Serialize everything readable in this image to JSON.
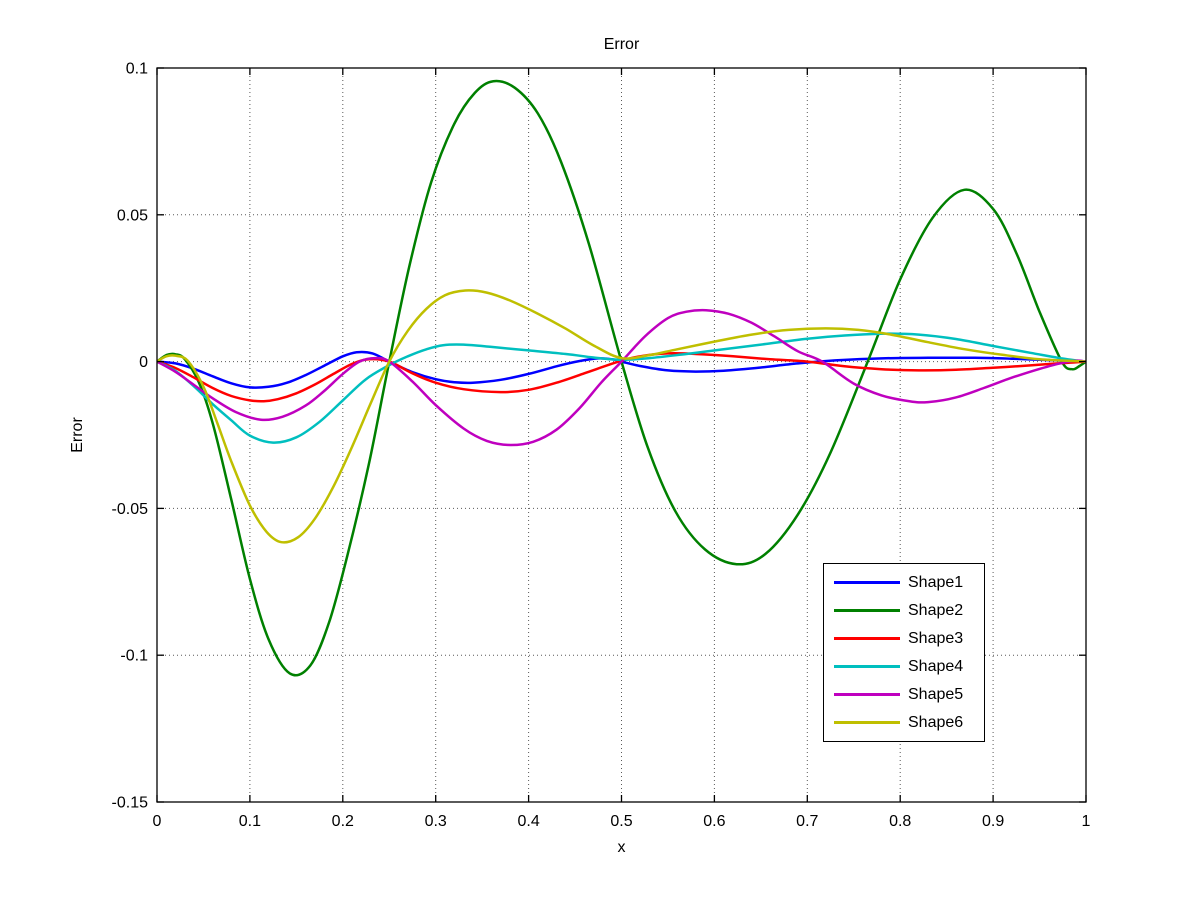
{
  "figure": {
    "title": "Error",
    "xlabel": "x",
    "ylabel": "Error",
    "background": "#ffffff"
  },
  "chart_data": {
    "type": "line",
    "title": "Error",
    "xlabel": "x",
    "ylabel": "Error",
    "xlim": [
      0,
      1
    ],
    "ylim": [
      -0.15,
      0.1
    ],
    "xtick_values": [
      0,
      0.1,
      0.2,
      0.3,
      0.4,
      0.5,
      0.6,
      0.7,
      0.8,
      0.9,
      1
    ],
    "xtick_labels": [
      "0",
      "0.1",
      "0.2",
      "0.3",
      "0.4",
      "0.5",
      "0.6",
      "0.7",
      "0.8",
      "0.9",
      "1"
    ],
    "ytick_values": [
      0.1,
      0.05,
      0,
      -0.05,
      -0.1,
      -0.15
    ],
    "ytick_labels": [
      "0.1",
      "0.05",
      "0",
      "-0.05",
      "-0.1",
      "-0.15"
    ],
    "grid": true,
    "grid_line_style": "dotted",
    "axis_color": "#000000",
    "legend_position": "lower-right-inside",
    "series": [
      {
        "name": "Shape1",
        "color": "#0000ff",
        "points": [
          [
            0,
            0
          ],
          [
            0.02,
            -0.0006
          ],
          [
            0.04,
            -0.0025
          ],
          [
            0.06,
            -0.005
          ],
          [
            0.08,
            -0.0074
          ],
          [
            0.1,
            -0.0088
          ],
          [
            0.12,
            -0.0086
          ],
          [
            0.14,
            -0.0072
          ],
          [
            0.16,
            -0.0046
          ],
          [
            0.18,
            -0.0014
          ],
          [
            0.2,
            0.0018
          ],
          [
            0.215,
            0.0032
          ],
          [
            0.232,
            0.0028
          ],
          [
            0.25,
            0
          ],
          [
            0.275,
            -0.0036
          ],
          [
            0.3,
            -0.006
          ],
          [
            0.32,
            -0.007
          ],
          [
            0.34,
            -0.0072
          ],
          [
            0.37,
            -0.0062
          ],
          [
            0.4,
            -0.0042
          ],
          [
            0.43,
            -0.0016
          ],
          [
            0.455,
            0.0002
          ],
          [
            0.475,
            0.0011
          ],
          [
            0.49,
            0.0008
          ],
          [
            0.5,
            0
          ],
          [
            0.52,
            -0.0015
          ],
          [
            0.55,
            -0.003
          ],
          [
            0.58,
            -0.0034
          ],
          [
            0.61,
            -0.0031
          ],
          [
            0.65,
            -0.002
          ],
          [
            0.69,
            -0.0006
          ],
          [
            0.73,
            0.0004
          ],
          [
            0.78,
            0.0011
          ],
          [
            0.83,
            0.0013
          ],
          [
            0.88,
            0.0013
          ],
          [
            0.92,
            0.001
          ],
          [
            0.96,
            0.0005
          ],
          [
            1,
            0
          ]
        ]
      },
      {
        "name": "Shape2",
        "color": "#008000",
        "points": [
          [
            0,
            0
          ],
          [
            0.01,
            0.0022
          ],
          [
            0.02,
            0.0025
          ],
          [
            0.03,
            0.0008
          ],
          [
            0.045,
            -0.007
          ],
          [
            0.06,
            -0.021
          ],
          [
            0.08,
            -0.047
          ],
          [
            0.1,
            -0.074
          ],
          [
            0.12,
            -0.0945
          ],
          [
            0.143,
            -0.1062
          ],
          [
            0.165,
            -0.1035
          ],
          [
            0.185,
            -0.089
          ],
          [
            0.205,
            -0.066
          ],
          [
            0.228,
            -0.035
          ],
          [
            0.25,
            0
          ],
          [
            0.272,
            0.033
          ],
          [
            0.295,
            0.061
          ],
          [
            0.32,
            0.081
          ],
          [
            0.342,
            0.0915
          ],
          [
            0.362,
            0.0955
          ],
          [
            0.385,
            0.0933
          ],
          [
            0.41,
            0.0845
          ],
          [
            0.435,
            0.068
          ],
          [
            0.465,
            0.04
          ],
          [
            0.5,
            0
          ],
          [
            0.528,
            -0.029
          ],
          [
            0.558,
            -0.051
          ],
          [
            0.59,
            -0.064
          ],
          [
            0.624,
            -0.069
          ],
          [
            0.655,
            -0.0655
          ],
          [
            0.69,
            -0.052
          ],
          [
            0.725,
            -0.031
          ],
          [
            0.765,
            0
          ],
          [
            0.8,
            0.028
          ],
          [
            0.835,
            0.049
          ],
          [
            0.869,
            0.0585
          ],
          [
            0.9,
            0.052
          ],
          [
            0.925,
            0.037
          ],
          [
            0.95,
            0.017
          ],
          [
            0.974,
            0
          ],
          [
            0.985,
            -0.0026
          ],
          [
            0.993,
            -0.0015
          ],
          [
            1,
            0
          ]
        ]
      },
      {
        "name": "Shape3",
        "color": "#ff0000",
        "points": [
          [
            0,
            0
          ],
          [
            0.02,
            -0.0022
          ],
          [
            0.04,
            -0.0055
          ],
          [
            0.06,
            -0.009
          ],
          [
            0.08,
            -0.0117
          ],
          [
            0.1,
            -0.0132
          ],
          [
            0.115,
            -0.0135
          ],
          [
            0.13,
            -0.0128
          ],
          [
            0.15,
            -0.0108
          ],
          [
            0.17,
            -0.0078
          ],
          [
            0.19,
            -0.0042
          ],
          [
            0.21,
            -0.0008
          ],
          [
            0.228,
            0.0008
          ],
          [
            0.25,
            0
          ],
          [
            0.275,
            -0.004
          ],
          [
            0.3,
            -0.0072
          ],
          [
            0.33,
            -0.0094
          ],
          [
            0.37,
            -0.0104
          ],
          [
            0.4,
            -0.0096
          ],
          [
            0.43,
            -0.0072
          ],
          [
            0.46,
            -0.004
          ],
          [
            0.497,
            0
          ],
          [
            0.52,
            0.0018
          ],
          [
            0.55,
            0.0028
          ],
          [
            0.58,
            0.0026
          ],
          [
            0.62,
            0.0018
          ],
          [
            0.66,
            0.0008
          ],
          [
            0.7,
            0
          ],
          [
            0.74,
            -0.0016
          ],
          [
            0.78,
            -0.0026
          ],
          [
            0.82,
            -0.003
          ],
          [
            0.86,
            -0.0028
          ],
          [
            0.9,
            -0.0021
          ],
          [
            0.94,
            -0.0013
          ],
          [
            0.97,
            -0.0006
          ],
          [
            1,
            0
          ]
        ]
      },
      {
        "name": "Shape4",
        "color": "#00bfbf",
        "points": [
          [
            0,
            0
          ],
          [
            0.02,
            -0.0032
          ],
          [
            0.04,
            -0.0085
          ],
          [
            0.06,
            -0.0145
          ],
          [
            0.08,
            -0.02
          ],
          [
            0.1,
            -0.0252
          ],
          [
            0.125,
            -0.0276
          ],
          [
            0.15,
            -0.0258
          ],
          [
            0.175,
            -0.0205
          ],
          [
            0.2,
            -0.0132
          ],
          [
            0.225,
            -0.006
          ],
          [
            0.25,
            -0.0012
          ],
          [
            0.27,
            0.0018
          ],
          [
            0.29,
            0.0042
          ],
          [
            0.308,
            0.0056
          ],
          [
            0.33,
            0.0058
          ],
          [
            0.36,
            0.005
          ],
          [
            0.4,
            0.0038
          ],
          [
            0.44,
            0.0026
          ],
          [
            0.47,
            0.0014
          ],
          [
            0.5,
            0.0006
          ],
          [
            0.53,
            0.0012
          ],
          [
            0.57,
            0.0026
          ],
          [
            0.61,
            0.0042
          ],
          [
            0.65,
            0.0058
          ],
          [
            0.7,
            0.0078
          ],
          [
            0.74,
            0.0089
          ],
          [
            0.78,
            0.0095
          ],
          [
            0.82,
            0.0092
          ],
          [
            0.86,
            0.0077
          ],
          [
            0.9,
            0.0053
          ],
          [
            0.94,
            0.003
          ],
          [
            0.97,
            0.0013
          ],
          [
            1,
            0
          ]
        ]
      },
      {
        "name": "Shape5",
        "color": "#bf00bf",
        "points": [
          [
            0,
            0
          ],
          [
            0.02,
            -0.0035
          ],
          [
            0.04,
            -0.008
          ],
          [
            0.06,
            -0.0125
          ],
          [
            0.085,
            -0.0172
          ],
          [
            0.112,
            -0.0198
          ],
          [
            0.135,
            -0.0188
          ],
          [
            0.16,
            -0.015
          ],
          [
            0.18,
            -0.01
          ],
          [
            0.2,
            -0.0042
          ],
          [
            0.218,
            0
          ],
          [
            0.235,
            0.0012
          ],
          [
            0.25,
            0
          ],
          [
            0.275,
            -0.0068
          ],
          [
            0.3,
            -0.0148
          ],
          [
            0.33,
            -0.0228
          ],
          [
            0.355,
            -0.027
          ],
          [
            0.38,
            -0.0284
          ],
          [
            0.405,
            -0.0273
          ],
          [
            0.43,
            -0.0232
          ],
          [
            0.455,
            -0.0158
          ],
          [
            0.478,
            -0.0072
          ],
          [
            0.5,
            0
          ],
          [
            0.525,
            0.0085
          ],
          [
            0.55,
            0.0148
          ],
          [
            0.57,
            0.017
          ],
          [
            0.591,
            0.0175
          ],
          [
            0.615,
            0.0163
          ],
          [
            0.64,
            0.0132
          ],
          [
            0.665,
            0.0085
          ],
          [
            0.69,
            0.0035
          ],
          [
            0.716,
            0
          ],
          [
            0.75,
            -0.0075
          ],
          [
            0.78,
            -0.0115
          ],
          [
            0.81,
            -0.0135
          ],
          [
            0.83,
            -0.0138
          ],
          [
            0.86,
            -0.0122
          ],
          [
            0.89,
            -0.009
          ],
          [
            0.92,
            -0.0055
          ],
          [
            0.95,
            -0.0025
          ],
          [
            0.975,
            -0.0004
          ],
          [
            0.99,
            0.0003
          ],
          [
            1,
            0
          ]
        ]
      },
      {
        "name": "Shape6",
        "color": "#bfbf00",
        "points": [
          [
            0,
            0
          ],
          [
            0.01,
            0.0018
          ],
          [
            0.02,
            0.002
          ],
          [
            0.033,
            0.0003
          ],
          [
            0.05,
            -0.0085
          ],
          [
            0.065,
            -0.021
          ],
          [
            0.08,
            -0.034
          ],
          [
            0.1,
            -0.049
          ],
          [
            0.118,
            -0.058
          ],
          [
            0.134,
            -0.0615
          ],
          [
            0.152,
            -0.0598
          ],
          [
            0.17,
            -0.0535
          ],
          [
            0.19,
            -0.0425
          ],
          [
            0.21,
            -0.029
          ],
          [
            0.23,
            -0.0142
          ],
          [
            0.25,
            0
          ],
          [
            0.27,
            0.0105
          ],
          [
            0.29,
            0.018
          ],
          [
            0.31,
            0.0226
          ],
          [
            0.332,
            0.0242
          ],
          [
            0.355,
            0.0235
          ],
          [
            0.38,
            0.0208
          ],
          [
            0.41,
            0.0163
          ],
          [
            0.44,
            0.0112
          ],
          [
            0.47,
            0.0055
          ],
          [
            0.5,
            0.0012
          ],
          [
            0.53,
            0.0022
          ],
          [
            0.56,
            0.0042
          ],
          [
            0.6,
            0.0068
          ],
          [
            0.64,
            0.0092
          ],
          [
            0.68,
            0.0108
          ],
          [
            0.72,
            0.0113
          ],
          [
            0.755,
            0.0108
          ],
          [
            0.79,
            0.0092
          ],
          [
            0.83,
            0.0066
          ],
          [
            0.87,
            0.0042
          ],
          [
            0.91,
            0.0023
          ],
          [
            0.95,
            0.0008
          ],
          [
            1,
            0
          ]
        ]
      }
    ]
  }
}
